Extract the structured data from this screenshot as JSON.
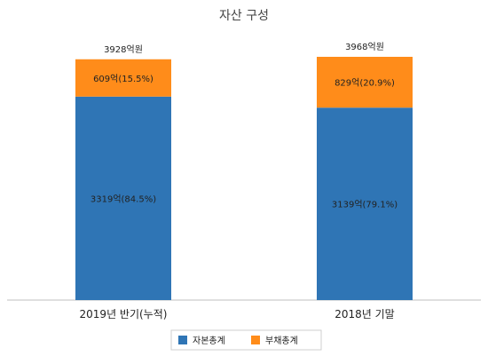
{
  "chart_data": {
    "type": "bar",
    "stacked": true,
    "title": "자산 구성",
    "categories": [
      "2019년 반기(누적)",
      "2018년 기말"
    ],
    "series": [
      {
        "name": "자본총계",
        "color": "#2f75b5",
        "values": [
          3319,
          3139
        ],
        "labels": [
          "3319억(84.5%)",
          "3139억(79.1%)"
        ]
      },
      {
        "name": "부채총계",
        "color": "#ff8c1a",
        "values": [
          609,
          829
        ],
        "labels": [
          "609억(15.5%)",
          "829억(20.9%)"
        ]
      }
    ],
    "totals": [
      3928,
      3968
    ],
    "total_labels": [
      "3928억원",
      "3968억원"
    ],
    "legend_position": "bottom",
    "grid": false
  }
}
